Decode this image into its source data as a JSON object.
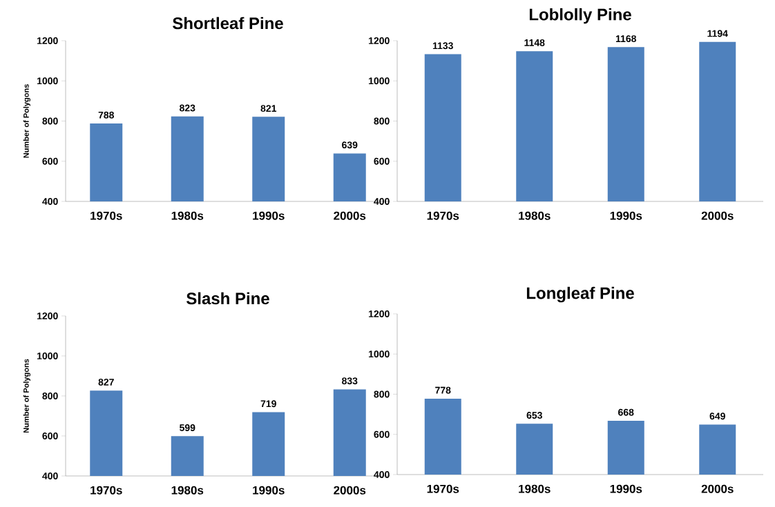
{
  "chart_data": [
    {
      "type": "bar",
      "title": "Shortleaf Pine",
      "ylabel": "Number of Polygons",
      "categories": [
        "1970s",
        "1980s",
        "1990s",
        "2000s"
      ],
      "values": [
        788,
        823,
        821,
        639
      ],
      "color": "#4f81bd",
      "ylim": [
        400,
        1200
      ],
      "yticks": [
        400,
        600,
        800,
        1000,
        1200
      ],
      "data_labels": true,
      "grid": false
    },
    {
      "type": "bar",
      "title": "Loblolly Pine",
      "categories": [
        "1970s",
        "1980s",
        "1990s",
        "2000s"
      ],
      "values": [
        1133,
        1148,
        1168,
        1194
      ],
      "color": "#4f81bd",
      "ylim": [
        400,
        1200
      ],
      "yticks": [
        400,
        600,
        800,
        1000,
        1200
      ],
      "data_labels": true,
      "grid": false
    },
    {
      "type": "bar",
      "title": "Slash Pine",
      "ylabel": "Number of Polygons",
      "categories": [
        "1970s",
        "1980s",
        "1990s",
        "2000s"
      ],
      "values": [
        827,
        599,
        719,
        833
      ],
      "color": "#4f81bd",
      "ylim": [
        400,
        1200
      ],
      "yticks": [
        400,
        600,
        800,
        1000,
        1200
      ],
      "data_labels": true,
      "grid": false
    },
    {
      "type": "bar",
      "title": "Longleaf Pine",
      "categories": [
        "1970s",
        "1980s",
        "1990s",
        "2000s"
      ],
      "values": [
        778,
        653,
        668,
        649
      ],
      "color": "#4f81bd",
      "ylim": [
        400,
        1200
      ],
      "yticks": [
        400,
        600,
        800,
        1000,
        1200
      ],
      "data_labels": true,
      "grid": false
    }
  ]
}
